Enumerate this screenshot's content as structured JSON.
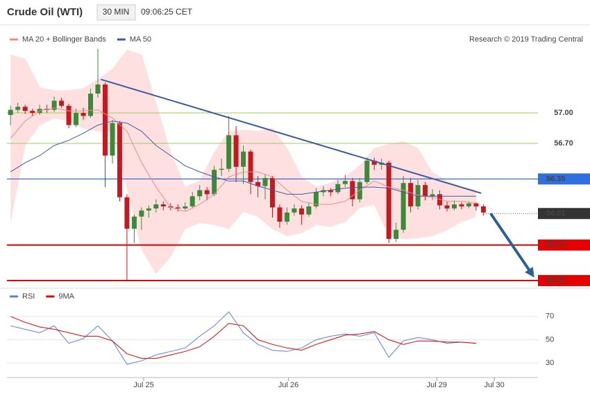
{
  "header": {
    "title": "Crude Oil (WTI)",
    "interval": "30 MIN",
    "time": "09:06:25 CET",
    "copyright": "Research © 2019 Trading Central"
  },
  "chart_data": [
    {
      "type": "candlestick",
      "up_color": "#3a8a3a",
      "down_color": "#c8171e",
      "xlim": [
        -0.5,
        72.5
      ],
      "ylim": [
        55.18,
        57.634
      ],
      "candles": [
        [
          56.98,
          57.07,
          56.88,
          57.03
        ],
        [
          57.03,
          57.1,
          57.0,
          57.06
        ],
        [
          57.06,
          57.08,
          56.99,
          57.02
        ],
        [
          57.02,
          57.04,
          56.97,
          57.0
        ],
        [
          57.0,
          57.08,
          56.98,
          57.04
        ],
        [
          57.04,
          57.08,
          57.0,
          57.03
        ],
        [
          57.03,
          57.16,
          57.01,
          57.12
        ],
        [
          57.12,
          57.15,
          57.05,
          57.07
        ],
        [
          57.07,
          57.09,
          56.85,
          56.88
        ],
        [
          56.88,
          57.04,
          56.86,
          57.0
        ],
        [
          57.0,
          57.05,
          56.93,
          56.97
        ],
        [
          56.97,
          57.24,
          56.95,
          57.19
        ],
        [
          57.19,
          57.63,
          57.15,
          57.28
        ],
        [
          57.28,
          57.3,
          56.27,
          56.58
        ],
        [
          56.58,
          56.93,
          56.5,
          56.9
        ],
        [
          56.9,
          56.92,
          56.13,
          56.17
        ],
        [
          56.17,
          56.2,
          55.35,
          55.86
        ],
        [
          55.86,
          56.0,
          55.72,
          55.98
        ],
        [
          55.98,
          56.07,
          55.85,
          56.04
        ],
        [
          56.04,
          56.09,
          55.97,
          56.06
        ],
        [
          56.06,
          56.15,
          56.02,
          56.1
        ],
        [
          56.1,
          56.13,
          56.04,
          56.08
        ],
        [
          56.08,
          56.11,
          56.04,
          56.07
        ],
        [
          56.07,
          56.1,
          56.03,
          56.06
        ],
        [
          56.06,
          56.12,
          56.04,
          56.08
        ],
        [
          56.08,
          56.22,
          56.06,
          56.18
        ],
        [
          56.18,
          56.29,
          56.14,
          56.24
        ],
        [
          56.24,
          56.27,
          56.14,
          56.2
        ],
        [
          56.2,
          56.48,
          56.18,
          56.44
        ],
        [
          56.44,
          56.55,
          56.38,
          56.45
        ],
        [
          56.45,
          56.97,
          56.42,
          56.78
        ],
        [
          56.78,
          56.87,
          56.32,
          56.47
        ],
        [
          56.47,
          56.68,
          56.3,
          56.62
        ],
        [
          56.62,
          56.64,
          56.2,
          56.32
        ],
        [
          56.32,
          56.38,
          56.17,
          56.28
        ],
        [
          56.28,
          56.4,
          56.15,
          56.36
        ],
        [
          56.36,
          56.38,
          55.97,
          56.07
        ],
        [
          56.07,
          56.1,
          55.87,
          55.93
        ],
        [
          55.93,
          56.07,
          55.9,
          56.02
        ],
        [
          56.02,
          56.1,
          55.99,
          56.06
        ],
        [
          56.06,
          56.09,
          55.9,
          56.0
        ],
        [
          56.0,
          56.12,
          55.98,
          56.08
        ],
        [
          56.08,
          56.26,
          56.06,
          56.22
        ],
        [
          56.22,
          56.28,
          56.18,
          56.24
        ],
        [
          56.24,
          56.26,
          56.18,
          56.22
        ],
        [
          56.22,
          56.34,
          56.2,
          56.3
        ],
        [
          56.3,
          56.39,
          56.27,
          56.33
        ],
        [
          56.33,
          56.36,
          56.08,
          56.15
        ],
        [
          56.15,
          56.36,
          56.12,
          56.32
        ],
        [
          56.32,
          56.56,
          56.3,
          56.53
        ],
        [
          56.53,
          56.56,
          56.44,
          56.49
        ],
        [
          56.49,
          56.55,
          56.44,
          56.51
        ],
        [
          56.51,
          56.53,
          55.72,
          55.76
        ],
        [
          55.76,
          55.92,
          55.73,
          55.85
        ],
        [
          55.85,
          56.38,
          55.82,
          56.31
        ],
        [
          56.31,
          56.36,
          56.02,
          56.08
        ],
        [
          56.08,
          56.34,
          56.05,
          56.29
        ],
        [
          56.29,
          56.32,
          56.14,
          56.18
        ],
        [
          56.18,
          56.25,
          56.14,
          56.2
        ],
        [
          56.2,
          56.24,
          56.05,
          56.09
        ],
        [
          56.09,
          56.13,
          56.03,
          56.06
        ],
        [
          56.06,
          56.14,
          56.04,
          56.1
        ],
        [
          56.1,
          56.12,
          56.05,
          56.08
        ],
        [
          56.08,
          56.13,
          56.06,
          56.11
        ],
        [
          56.11,
          56.12,
          56.04,
          56.08
        ],
        [
          56.08,
          56.1,
          55.99,
          56.02
        ]
      ],
      "x": [
        0,
        2,
        4,
        6,
        8,
        10,
        12,
        14,
        16,
        18,
        20,
        22,
        24,
        26,
        28,
        30,
        32,
        34,
        36,
        38,
        40,
        42,
        44,
        46,
        48,
        50,
        52,
        54,
        56,
        58,
        60,
        62,
        64
      ],
      "series": [
        {
          "name": "MA 20 + Bollinger Bands",
          "color": "#f08a8a",
          "band_color": "#ffe0e0",
          "values": [
            56.75,
            56.92,
            57.02,
            57.05,
            57.02,
            57.02,
            57.03,
            56.95,
            56.82,
            56.51,
            56.27,
            56.07,
            56.03,
            56.1,
            56.2,
            56.37,
            56.42,
            56.42,
            56.37,
            56.24,
            56.13,
            56.1,
            56.1,
            56.13,
            56.24,
            56.33,
            56.27,
            56.24,
            56.19,
            56.17,
            56.13,
            56.13,
            56.11
          ],
          "upper": [
            57.57,
            57.53,
            57.25,
            57.22,
            57.22,
            57.24,
            57.33,
            57.43,
            57.62,
            57.57,
            57.09,
            56.61,
            56.27,
            56.33,
            56.61,
            56.82,
            56.83,
            56.82,
            56.85,
            56.65,
            56.37,
            56.27,
            56.31,
            56.37,
            56.48,
            56.65,
            56.69,
            56.72,
            56.65,
            56.41,
            56.33,
            56.27,
            56.24
          ],
          "lower": [
            55.93,
            56.68,
            56.88,
            56.95,
            56.92,
            56.85,
            56.82,
            56.82,
            56.27,
            55.66,
            55.42,
            55.59,
            55.86,
            55.92,
            55.9,
            55.86,
            56.03,
            55.98,
            55.86,
            55.79,
            55.82,
            55.9,
            55.88,
            55.93,
            56.07,
            56.1,
            55.79,
            55.76,
            55.77,
            55.79,
            55.85,
            55.93,
            55.98
          ]
        },
        {
          "name": "MA 50",
          "color": "#3b5aa0",
          "values": [
            56.42,
            56.51,
            56.58,
            56.68,
            56.73,
            56.8,
            56.88,
            56.92,
            56.9,
            56.82,
            56.68,
            56.58,
            56.48,
            56.42,
            56.37,
            56.33,
            56.33,
            56.28,
            56.24,
            56.2,
            56.2,
            56.22,
            56.24,
            56.26,
            56.27,
            56.27,
            56.26,
            56.22,
            56.18,
            56.18,
            56.18,
            56.18,
            56.18
          ]
        }
      ],
      "levels": [
        {
          "value": 57.0,
          "label": "57.00",
          "color": "#9acd5a",
          "style": "text"
        },
        {
          "value": 56.7,
          "label": "56.70",
          "color": "#9acd5a",
          "style": "text"
        },
        {
          "value": 56.35,
          "label": "56.35",
          "color": "#2f6fe0",
          "style": "box"
        },
        {
          "value": 56.01,
          "label": "56.01",
          "color": "#333333",
          "style": "dotted-box"
        },
        {
          "value": 55.7,
          "label": "55.70",
          "color": "#e60000",
          "style": "box"
        },
        {
          "value": 55.35,
          "label": "55.35",
          "color": "#e60000",
          "style": "box"
        }
      ],
      "trend_line": {
        "color": "#3b5aa0",
        "x": [
          12.4,
          64.7
        ],
        "y": [
          57.33,
          56.21
        ]
      },
      "forecast_arrow": {
        "color": "#2c5f9e",
        "x": [
          66.0,
          72.0
        ],
        "y": [
          56.01,
          55.38
        ]
      }
    },
    {
      "type": "line",
      "xlim": [
        -0.5,
        72.5
      ],
      "ylim": [
        20,
        80
      ],
      "yticks": [
        30,
        50,
        70
      ],
      "xticks": [
        {
          "value": 18.3,
          "label": "Jul 25"
        },
        {
          "value": 38.2,
          "label": "Jul 26"
        },
        {
          "value": 58.6,
          "label": "Jul 29"
        },
        {
          "value": 66.5,
          "label": "Jul 30"
        }
      ],
      "x": [
        0,
        2,
        4,
        6,
        8,
        10,
        12,
        14,
        16,
        18,
        20,
        22,
        24,
        26,
        28,
        30,
        32,
        34,
        36,
        38,
        40,
        42,
        44,
        46,
        48,
        50,
        52,
        54,
        56,
        58,
        60,
        62,
        64
      ],
      "series": [
        {
          "name": "RSI",
          "color": "#5b7fe0",
          "values": [
            62,
            59,
            56,
            62,
            47,
            51,
            62,
            49,
            29,
            32,
            37,
            40,
            43,
            53,
            62,
            74,
            56,
            46,
            41,
            40,
            43,
            50,
            53,
            55,
            53,
            56,
            35,
            49,
            52,
            50,
            47,
            48,
            47
          ]
        },
        {
          "name": "9MA",
          "color": "#e60000",
          "values": [
            70,
            65,
            61,
            59,
            56,
            53,
            53,
            49,
            38,
            34,
            34,
            37,
            40,
            44,
            53,
            64,
            62,
            50,
            46,
            43,
            41,
            46,
            50,
            54,
            55,
            57,
            50,
            46,
            49,
            49,
            48,
            48,
            47
          ]
        }
      ]
    }
  ]
}
